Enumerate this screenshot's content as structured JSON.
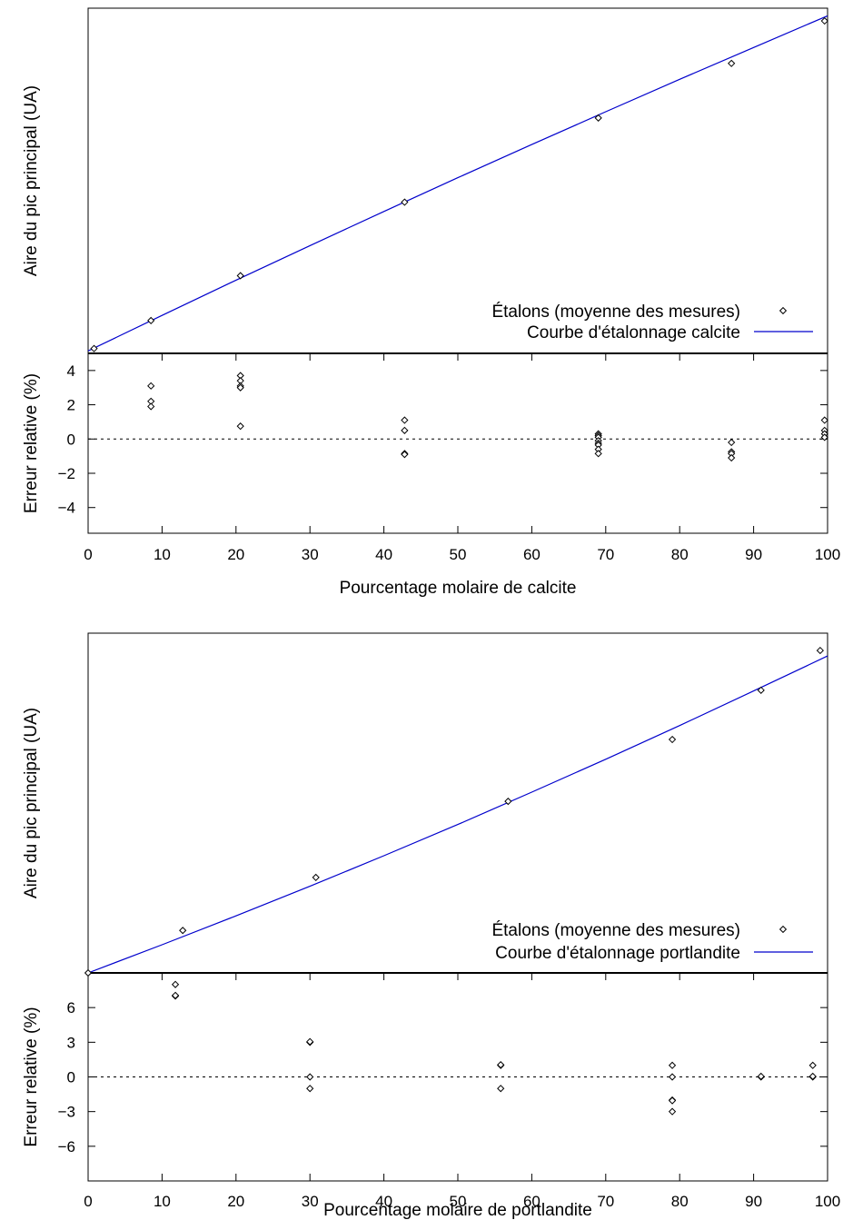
{
  "figure_colors": {
    "curve": "#0000cc",
    "markers": "#000000",
    "zero_line": "#000000"
  },
  "chart_data": [
    {
      "type": "scatter",
      "panel": "calcite",
      "xlabel": "Pourcentage molaire de calcite",
      "x_ticks": [
        "0",
        "10",
        "20",
        "30",
        "40",
        "50",
        "60",
        "70",
        "80",
        "90",
        "100"
      ],
      "xlim": [
        0,
        100
      ],
      "main": {
        "ylabel": "Aire du pic principal (UA)",
        "y_ticks_shown": false,
        "ylim": [
          0,
          100
        ],
        "legend_position": "bottom-right",
        "series": [
          {
            "name": "Étalons (moyenne des mesures)",
            "kind": "points",
            "points": [
              [
                0.8,
                1.4
              ],
              [
                8.5,
                9.5
              ],
              [
                20.6,
                22.5
              ],
              [
                42.8,
                43.8
              ],
              [
                69.0,
                68.2
              ],
              [
                87.0,
                84.0
              ],
              [
                99.6,
                96.3
              ]
            ]
          },
          {
            "name": "Courbe d'étalonnage calcite",
            "kind": "line",
            "points": [
              [
                0,
                0.7
              ],
              [
                10,
                11.0
              ],
              [
                20,
                21.2
              ],
              [
                30,
                31.2
              ],
              [
                40,
                41.1
              ],
              [
                50,
                50.9
              ],
              [
                60,
                60.5
              ],
              [
                70,
                70.0
              ],
              [
                80,
                79.4
              ],
              [
                90,
                88.6
              ],
              [
                100,
                97.8
              ]
            ]
          }
        ]
      },
      "residual": {
        "ylabel": "Erreur relative (%)",
        "y_ticks": [
          "4",
          "2",
          "0",
          "−2",
          "−4"
        ],
        "y_tick_values": [
          4,
          2,
          0,
          -2,
          -4
        ],
        "ylim": [
          -5.5,
          5
        ],
        "zero_line": "dotted",
        "points": [
          [
            8.5,
            3.1
          ],
          [
            8.5,
            2.2
          ],
          [
            8.5,
            1.9
          ],
          [
            20.6,
            3.7
          ],
          [
            20.6,
            3.4
          ],
          [
            20.6,
            3.1
          ],
          [
            20.6,
            3.0
          ],
          [
            20.6,
            0.75
          ],
          [
            42.8,
            1.1
          ],
          [
            42.8,
            0.5
          ],
          [
            42.8,
            -0.85
          ],
          [
            42.8,
            -0.9
          ],
          [
            69.0,
            0.3
          ],
          [
            69.0,
            0.2
          ],
          [
            69.0,
            0.1
          ],
          [
            69.0,
            -0.1
          ],
          [
            69.0,
            -0.25
          ],
          [
            69.0,
            -0.35
          ],
          [
            69.0,
            -0.6
          ],
          [
            69.0,
            -0.85
          ],
          [
            87.0,
            -0.2
          ],
          [
            87.0,
            -0.75
          ],
          [
            87.0,
            -0.85
          ],
          [
            87.0,
            -1.1
          ],
          [
            99.6,
            1.1
          ],
          [
            99.6,
            0.5
          ],
          [
            99.6,
            0.3
          ],
          [
            99.6,
            0.1
          ]
        ]
      }
    },
    {
      "type": "scatter",
      "panel": "portlandite",
      "xlabel": "Pourcentage molaire de portlandite",
      "x_ticks": [
        "0",
        "10",
        "20",
        "30",
        "40",
        "50",
        "60",
        "70",
        "80",
        "90",
        "100"
      ],
      "xlim": [
        0,
        100
      ],
      "main": {
        "ylabel": "Aire du pic principal (UA)",
        "y_ticks_shown": false,
        "ylim": [
          0,
          100
        ],
        "legend_position": "bottom-right",
        "series": [
          {
            "name": "Étalons (moyenne des mesures)",
            "kind": "points",
            "points": [
              [
                0,
                0.0
              ],
              [
                12.8,
                12.5
              ],
              [
                30.8,
                28.1
              ],
              [
                56.8,
                50.5
              ],
              [
                79.0,
                68.7
              ],
              [
                91.0,
                83.2
              ],
              [
                99.0,
                94.9
              ]
            ]
          },
          {
            "name": "Courbe d'étalonnage portlandite",
            "kind": "line",
            "points": [
              [
                0,
                0.0
              ],
              [
                10,
                8.3
              ],
              [
                20,
                16.8
              ],
              [
                30,
                25.5
              ],
              [
                40,
                34.5
              ],
              [
                50,
                43.7
              ],
              [
                60,
                53.2
              ],
              [
                70,
                62.9
              ],
              [
                80,
                72.8
              ],
              [
                90,
                83.0
              ],
              [
                100,
                93.3
              ]
            ]
          }
        ]
      },
      "residual": {
        "ylabel": "Erreur relative (%)",
        "y_ticks": [
          "6",
          "3",
          "0",
          "−3",
          "−6"
        ],
        "y_tick_values": [
          6,
          3,
          0,
          -3,
          -6
        ],
        "ylim": [
          -9,
          9
        ],
        "zero_line": "dotted",
        "points": [
          [
            11.8,
            8.0
          ],
          [
            11.8,
            7.0
          ],
          [
            11.8,
            7.05
          ],
          [
            30.0,
            3.0
          ],
          [
            30.0,
            3.05
          ],
          [
            30.0,
            0.0
          ],
          [
            30.0,
            -1.0
          ],
          [
            55.8,
            1.0
          ],
          [
            55.8,
            1.05
          ],
          [
            55.8,
            -1.0
          ],
          [
            79.0,
            1.0
          ],
          [
            79.0,
            0.0
          ],
          [
            79.0,
            -2.0
          ],
          [
            79.0,
            -2.05
          ],
          [
            79.0,
            -3.0
          ],
          [
            91.0,
            0.0
          ],
          [
            91.0,
            0.05
          ],
          [
            98.0,
            1.0
          ],
          [
            98.0,
            0.0
          ],
          [
            98.0,
            0.05
          ]
        ]
      }
    }
  ]
}
